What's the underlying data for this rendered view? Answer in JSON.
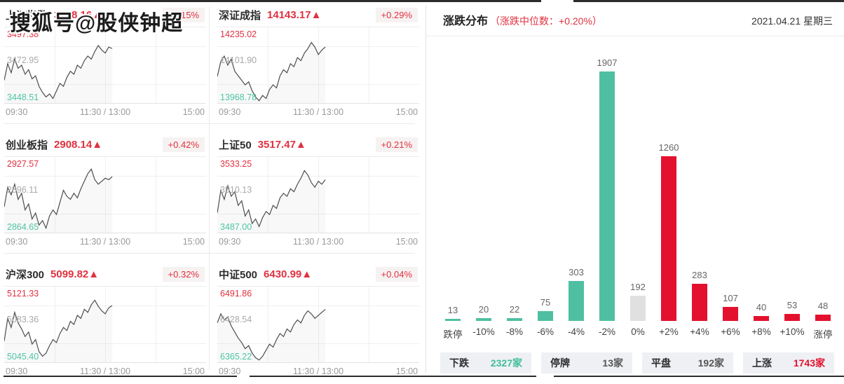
{
  "watermark": "搜狐号@股侠钟超",
  "panels": [
    {
      "name": "上证指数",
      "value": "3478.16▲",
      "change": "+0.15%",
      "high": "3497.38",
      "mid": "3472.95",
      "low": "3448.51",
      "t1": "09:30",
      "t2": "11:30 / 13:00",
      "t3": "15:00",
      "series": [
        0.3,
        0.52,
        0.4,
        0.58,
        0.46,
        0.5,
        0.38,
        0.44,
        0.32,
        0.36,
        0.22,
        0.14,
        0.08,
        0.12,
        0.06,
        0.16,
        0.26,
        0.22,
        0.34,
        0.42,
        0.38,
        0.5,
        0.46,
        0.56,
        0.62,
        0.58,
        0.68,
        0.76,
        0.7,
        0.66,
        0.74,
        0.72
      ]
    },
    {
      "name": "深证成指",
      "value": "14143.17▲",
      "change": "+0.29%",
      "high": "14235.02",
      "mid": "14101.90",
      "low": "13968.78",
      "t1": "09:30",
      "t2": "11:30 / 13:00",
      "t3": "15:00",
      "series": [
        0.35,
        0.55,
        0.62,
        0.5,
        0.58,
        0.42,
        0.36,
        0.3,
        0.24,
        0.28,
        0.16,
        0.08,
        0.03,
        0.1,
        0.06,
        0.18,
        0.24,
        0.2,
        0.36,
        0.44,
        0.4,
        0.52,
        0.48,
        0.6,
        0.56,
        0.66,
        0.72,
        0.8,
        0.74,
        0.64,
        0.7,
        0.74
      ]
    },
    {
      "name": "创业板指",
      "value": "2908.14▲",
      "change": "+0.42%",
      "high": "2927.57",
      "mid": "2896.11",
      "low": "2864.65",
      "t1": "09:30",
      "t2": "11:30 / 13:00",
      "t3": "15:00",
      "series": [
        0.34,
        0.6,
        0.5,
        0.64,
        0.44,
        0.52,
        0.3,
        0.38,
        0.18,
        0.26,
        0.1,
        0.16,
        0.06,
        0.22,
        0.3,
        0.24,
        0.4,
        0.56,
        0.48,
        0.44,
        0.52,
        0.46,
        0.58,
        0.68,
        0.78,
        0.84,
        0.7,
        0.64,
        0.68,
        0.72,
        0.7,
        0.74
      ]
    },
    {
      "name": "上证50",
      "value": "3517.47▲",
      "change": "+0.21%",
      "high": "3533.25",
      "mid": "3510.13",
      "low": "3487.00",
      "t1": "09:30",
      "t2": "11:30 / 13:00",
      "t3": "15:00",
      "series": [
        0.26,
        0.56,
        0.44,
        0.62,
        0.48,
        0.54,
        0.36,
        0.42,
        0.22,
        0.3,
        0.12,
        0.18,
        0.08,
        0.2,
        0.28,
        0.24,
        0.36,
        0.32,
        0.46,
        0.52,
        0.48,
        0.58,
        0.54,
        0.64,
        0.72,
        0.82,
        0.76,
        0.66,
        0.6,
        0.68,
        0.64,
        0.7
      ]
    },
    {
      "name": "沪深300",
      "value": "5099.82▲",
      "change": "+0.32%",
      "high": "5121.33",
      "mid": "5083.36",
      "low": "5045.40",
      "t1": "09:30",
      "t2": "11:30 / 13:00",
      "t3": "15:00",
      "series": [
        0.28,
        0.58,
        0.46,
        0.66,
        0.52,
        0.44,
        0.34,
        0.4,
        0.24,
        0.3,
        0.14,
        0.08,
        0.12,
        0.22,
        0.3,
        0.26,
        0.38,
        0.46,
        0.42,
        0.54,
        0.5,
        0.62,
        0.58,
        0.7,
        0.66,
        0.76,
        0.82,
        0.74,
        0.68,
        0.64,
        0.72,
        0.75
      ]
    },
    {
      "name": "中证500",
      "value": "6430.99▲",
      "change": "+0.04%",
      "high": "6491.86",
      "mid": "6428.54",
      "low": "6365.22",
      "t1": "09:30",
      "t2": "11:30 / 13:00",
      "t3": "15:00",
      "series": [
        0.52,
        0.64,
        0.56,
        0.6,
        0.48,
        0.4,
        0.32,
        0.26,
        0.18,
        0.22,
        0.12,
        0.06,
        0.03,
        0.08,
        0.16,
        0.24,
        0.2,
        0.3,
        0.38,
        0.34,
        0.44,
        0.4,
        0.5,
        0.56,
        0.52,
        0.62,
        0.68,
        0.64,
        0.58,
        0.62,
        0.66,
        0.7
      ]
    }
  ],
  "distribution": {
    "title": "涨跌分布",
    "subtitle": "（涨跌中位数：+0.20%）",
    "date": "2021.04.21 星期三"
  },
  "chart_data": {
    "type": "bar",
    "title": "涨跌分布",
    "categories": [
      "跌停",
      "-10%",
      "-8%",
      "-6%",
      "-4%",
      "-2%",
      "0%",
      "+2%",
      "+4%",
      "+6%",
      "+8%",
      "+10%",
      "涨停"
    ],
    "values": [
      13,
      20,
      22,
      75,
      303,
      1907,
      192,
      1260,
      283,
      107,
      40,
      53,
      48
    ],
    "bar_colors": [
      "green",
      "green",
      "green",
      "green",
      "green",
      "green",
      "gray",
      "red",
      "red",
      "red",
      "red",
      "red",
      "red"
    ],
    "ylim": [
      0,
      1907
    ],
    "grid": false,
    "value_labels": true
  },
  "summary": [
    {
      "label": "下跌",
      "value": "2327家",
      "color": "green"
    },
    {
      "label": "停牌",
      "value": "13家",
      "color": "gray"
    },
    {
      "label": "平盘",
      "value": "192家",
      "color": "gray"
    },
    {
      "label": "上涨",
      "value": "1743家",
      "color": "red"
    }
  ],
  "colors": {
    "text_red": "#e0313f",
    "bar_red": "#e3112e",
    "bar_green": "#4fbfa2",
    "bar_gray": "#e0e0e0",
    "label_green": "#4fc5a5",
    "mid_gray": "#a9a9a9",
    "axis_gray": "#999999",
    "chip_bg": "#eef0f4"
  }
}
